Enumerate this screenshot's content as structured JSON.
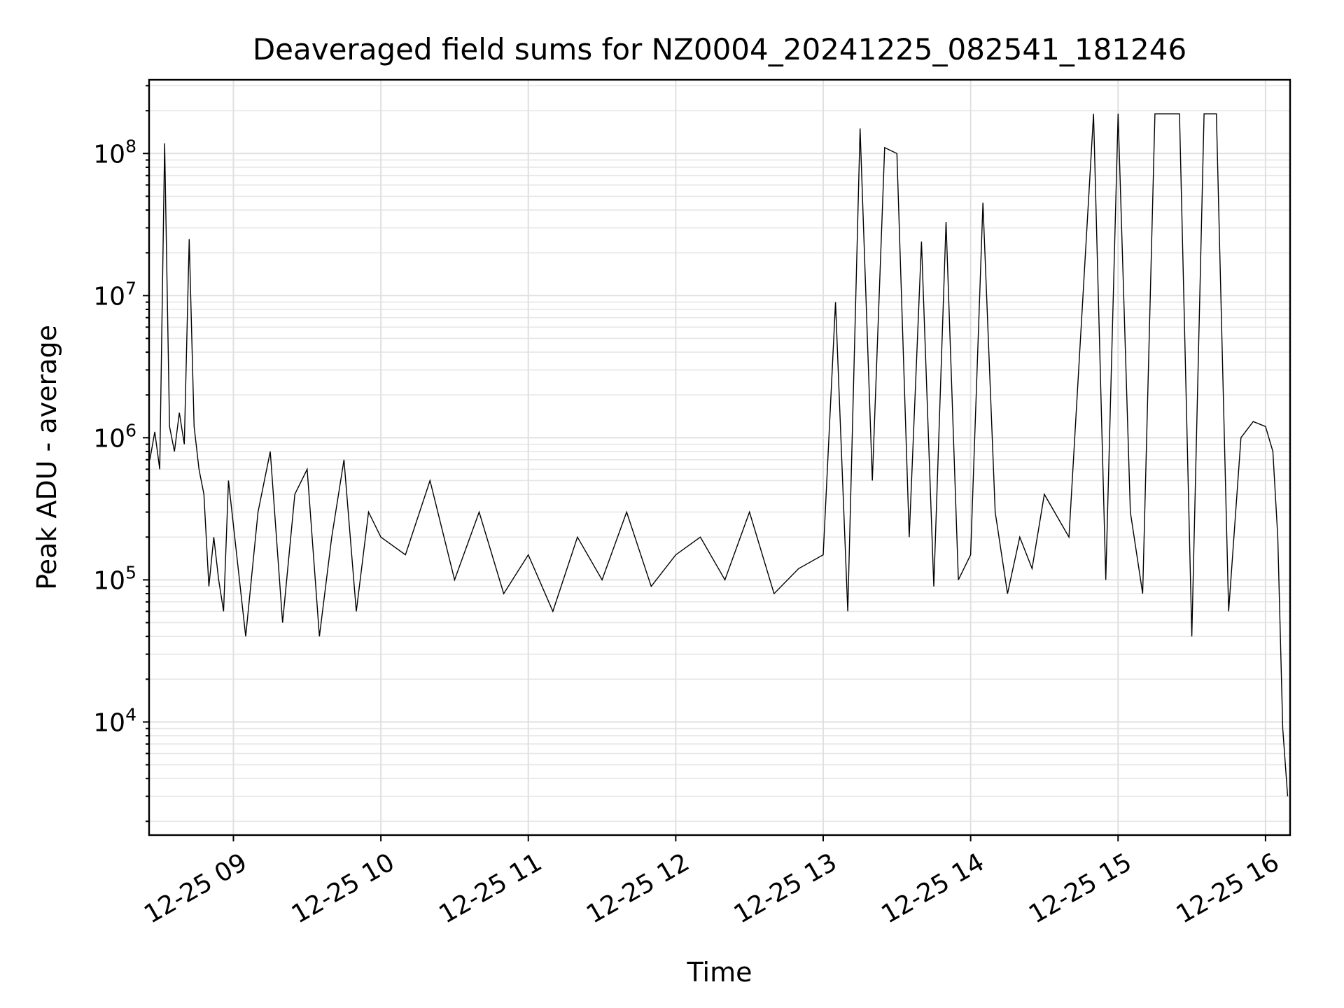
{
  "chart_data": {
    "type": "line",
    "title": "Deaveraged field sums for NZ0004_20241225_082541_181246",
    "xlabel": "Time",
    "ylabel": "Peak ADU - average",
    "yscale": "log",
    "ylim": [
      1600,
      330000000
    ],
    "xlim": [
      "2024-12-25 08:25:41",
      "2024-12-25 16:10:00"
    ],
    "grid": true,
    "line_color": "#000000",
    "grid_color": "#e0e0e0",
    "x_ticks": [
      {
        "value": "2024-12-25 09:00",
        "label": "12-25 09"
      },
      {
        "value": "2024-12-25 10:00",
        "label": "12-25 10"
      },
      {
        "value": "2024-12-25 11:00",
        "label": "12-25 11"
      },
      {
        "value": "2024-12-25 12:00",
        "label": "12-25 12"
      },
      {
        "value": "2024-12-25 13:00",
        "label": "12-25 13"
      },
      {
        "value": "2024-12-25 14:00",
        "label": "12-25 14"
      },
      {
        "value": "2024-12-25 15:00",
        "label": "12-25 15"
      },
      {
        "value": "2024-12-25 16:00",
        "label": "12-25 16"
      }
    ],
    "y_ticks": [
      {
        "value": 10000,
        "base": "10",
        "exp": "4"
      },
      {
        "value": 100000,
        "base": "10",
        "exp": "5"
      },
      {
        "value": 1000000,
        "base": "10",
        "exp": "6"
      },
      {
        "value": 10000000,
        "base": "10",
        "exp": "7"
      },
      {
        "value": 100000000,
        "base": "10",
        "exp": "8"
      }
    ],
    "series": [
      {
        "x": [
          "2024-12-25 08:26",
          "2024-12-25 08:28",
          "2024-12-25 08:30",
          "2024-12-25 08:32",
          "2024-12-25 08:34",
          "2024-12-25 08:36",
          "2024-12-25 08:38",
          "2024-12-25 08:40",
          "2024-12-25 08:42",
          "2024-12-25 08:44",
          "2024-12-25 08:46",
          "2024-12-25 08:48",
          "2024-12-25 08:50",
          "2024-12-25 08:52",
          "2024-12-25 08:54",
          "2024-12-25 08:56",
          "2024-12-25 08:58",
          "2024-12-25 09:05",
          "2024-12-25 09:10",
          "2024-12-25 09:15",
          "2024-12-25 09:20",
          "2024-12-25 09:25",
          "2024-12-25 09:30",
          "2024-12-25 09:35",
          "2024-12-25 09:40",
          "2024-12-25 09:45",
          "2024-12-25 09:50",
          "2024-12-25 09:55",
          "2024-12-25 10:00",
          "2024-12-25 10:10",
          "2024-12-25 10:20",
          "2024-12-25 10:30",
          "2024-12-25 10:40",
          "2024-12-25 10:50",
          "2024-12-25 11:00",
          "2024-12-25 11:10",
          "2024-12-25 11:20",
          "2024-12-25 11:30",
          "2024-12-25 11:40",
          "2024-12-25 11:50",
          "2024-12-25 12:00",
          "2024-12-25 12:10",
          "2024-12-25 12:20",
          "2024-12-25 12:30",
          "2024-12-25 12:40",
          "2024-12-25 12:50",
          "2024-12-25 13:00",
          "2024-12-25 13:05",
          "2024-12-25 13:10",
          "2024-12-25 13:15",
          "2024-12-25 13:20",
          "2024-12-25 13:25",
          "2024-12-25 13:30",
          "2024-12-25 13:35",
          "2024-12-25 13:40",
          "2024-12-25 13:45",
          "2024-12-25 13:50",
          "2024-12-25 13:55",
          "2024-12-25 14:00",
          "2024-12-25 14:05",
          "2024-12-25 14:10",
          "2024-12-25 14:15",
          "2024-12-25 14:20",
          "2024-12-25 14:25",
          "2024-12-25 14:30",
          "2024-12-25 14:40",
          "2024-12-25 14:50",
          "2024-12-25 14:55",
          "2024-12-25 15:00",
          "2024-12-25 15:05",
          "2024-12-25 15:10",
          "2024-12-25 15:15",
          "2024-12-25 15:20",
          "2024-12-25 15:25",
          "2024-12-25 15:30",
          "2024-12-25 15:35",
          "2024-12-25 15:40",
          "2024-12-25 15:45",
          "2024-12-25 15:50",
          "2024-12-25 15:55",
          "2024-12-25 16:00",
          "2024-12-25 16:03",
          "2024-12-25 16:05",
          "2024-12-25 16:07",
          "2024-12-25 16:09"
        ],
        "y": [
          700000,
          1100000,
          600000,
          118000000,
          1200000,
          800000,
          1500000,
          900000,
          25000000,
          1200000,
          600000,
          400000,
          90000,
          200000,
          100000,
          60000,
          500000,
          40000,
          300000,
          800000,
          50000,
          400000,
          600000,
          40000,
          200000,
          700000,
          60000,
          300000,
          200000,
          150000,
          500000,
          100000,
          300000,
          80000,
          150000,
          60000,
          200000,
          100000,
          300000,
          90000,
          150000,
          200000,
          100000,
          300000,
          80000,
          120000,
          150000,
          9000000,
          60000,
          150000000,
          500000,
          110000000,
          100000000,
          200000,
          24000000,
          90000,
          33000000,
          100000,
          150000,
          45000000,
          300000,
          80000,
          200000,
          120000,
          400000,
          200000,
          190000000,
          100000,
          190000000,
          300000,
          80000,
          190000000,
          190000000,
          190000000,
          40000,
          190000000,
          190000000,
          60000,
          1000000,
          1300000,
          1200000,
          800000,
          200000,
          9000,
          3000
        ]
      }
    ]
  }
}
